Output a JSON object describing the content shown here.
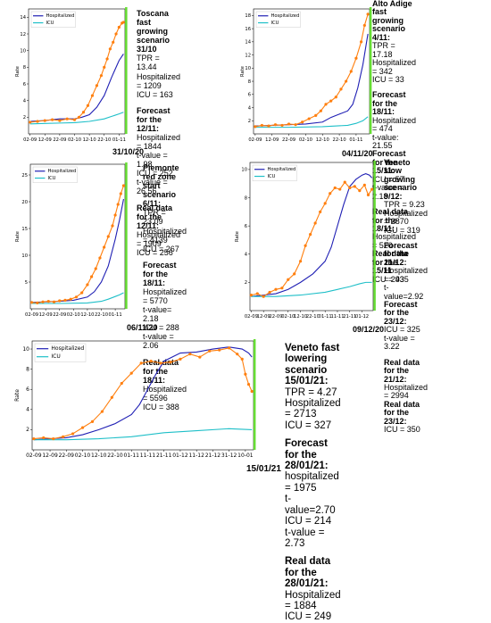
{
  "colors": {
    "hospitalized": "#1f1fb4",
    "icu": "#1ebfc8",
    "scatter": "#ff7f0e",
    "today_line": "#66dd33"
  },
  "panels": [
    {
      "date_label": "31/10/20",
      "info": [
        {
          "t": "Toscana fast",
          "b": true
        },
        {
          "t": "growing scenario 31/10",
          "b": true
        },
        {
          "t": "TPR = 13.44",
          "b": false
        },
        {
          "t": "Hospitalized = 1209",
          "b": false
        },
        {
          "t": "ICU = 163",
          "b": false
        },
        {
          "gap": true
        },
        {
          "t": "Forecast for the 12/11:",
          "b": true
        },
        {
          "t": "Hospitalized = 1844",
          "b": false
        },
        {
          "t": "t-value = 1.98",
          "b": false
        },
        {
          "t": "ICU = 252",
          "b": false
        },
        {
          "t": "t-value = 26.56",
          "b": false
        },
        {
          "gap": true
        },
        {
          "t": "Real data for the 12/11:",
          "b": true
        },
        {
          "t": "Hospitalized = 1909",
          "b": false
        },
        {
          "t": "ICU = 256",
          "b": false
        }
      ]
    },
    {
      "date_label": "04/11/20",
      "info": [
        {
          "t": "Alto Adige fast",
          "b": true
        },
        {
          "t": "growing scenario 4/11:",
          "b": true
        },
        {
          "t": "TPR = 17.18",
          "b": false
        },
        {
          "t": "Hospitalized = 342",
          "b": false
        },
        {
          "t": "ICU = 33",
          "b": false
        },
        {
          "gap": true
        },
        {
          "t": "Forecast for the 18/11:",
          "b": true
        },
        {
          "t": "Hospitalized = 474",
          "b": false
        },
        {
          "t": "t-value: 21.55",
          "b": false
        },
        {
          "t": "Forecast for the 15/11:",
          "b": true
        },
        {
          "t": "ICU = 57",
          "b": false
        },
        {
          "t": "t-value = 2.18",
          "b": false
        },
        {
          "gap": true
        },
        {
          "t": "Real data for the 18/11:",
          "b": true
        },
        {
          "t": "Hospitalized = 520",
          "b": false
        },
        {
          "t": "Real data for the 15/11",
          "b": true
        },
        {
          "t": "ICU = 43",
          "b": false
        }
      ]
    },
    {
      "date_label": "06/11\\20",
      "info": [
        {
          "t": "Piemonte red zone",
          "b": true
        },
        {
          "t": "start scenario 6/11:",
          "b": true
        },
        {
          "t": "TPR = 23.09",
          "b": false
        },
        {
          "t": "Hospitalized = 4139",
          "b": false
        },
        {
          "t": "ICU = 267",
          "b": false
        },
        {
          "gap": true
        },
        {
          "t": "Forecast for the 18/11:",
          "b": true
        },
        {
          "t": "Hospitalized = 5770",
          "b": false
        },
        {
          "t": "t-value= 2.18",
          "b": false
        },
        {
          "t": "ICU = 288",
          "b": false
        },
        {
          "t": "t-value = 2.06",
          "b": false
        },
        {
          "gap": true
        },
        {
          "t": "Real data for the 18/11:",
          "b": true
        },
        {
          "t": "Hospitalized = 5596",
          "b": false
        },
        {
          "t": "ICU = 388",
          "b": false
        }
      ]
    },
    {
      "date_label": "09/12/20",
      "info": [
        {
          "t": "Veneto slow",
          "b": true
        },
        {
          "t": "growing scenario 9/12:",
          "b": true
        },
        {
          "t": "TPR = 9.23",
          "b": false
        },
        {
          "t": "Hospitalized = 2870",
          "b": false
        },
        {
          "t": "ICU = 319",
          "b": false
        },
        {
          "gap": true
        },
        {
          "t": "Forecast for the 21/12:",
          "b": true
        },
        {
          "t": "Hospitalized = 2935",
          "b": false
        },
        {
          "t": "t-value=2.92",
          "b": false
        },
        {
          "t": "Forecast for the 23/12:",
          "b": true
        },
        {
          "t": "ICU = 325",
          "b": false
        },
        {
          "t": "t-value = 3.22",
          "b": false
        },
        {
          "gap": true
        },
        {
          "t": "Real data for the 21/12:",
          "b": true
        },
        {
          "t": "Hospitalized = 2994",
          "b": false
        },
        {
          "t": "Real data for the 23/12:",
          "b": true
        },
        {
          "t": "ICU = 350",
          "b": false
        }
      ]
    },
    {
      "date_label": "15/01/21",
      "info": [
        {
          "t": "Veneto fast",
          "b": true
        },
        {
          "t": "lowering scenario 15/01/21:",
          "b": true
        },
        {
          "t": "TPR = 4.27",
          "b": false
        },
        {
          "t": "Hospitalized = 2713",
          "b": false
        },
        {
          "t": "ICU = 327",
          "b": false
        },
        {
          "gap": true
        },
        {
          "t": "Forecast for the 28/01/21:",
          "b": true
        },
        {
          "t": "hospitalized = 1975",
          "b": false
        },
        {
          "t": "t-value=2.70",
          "b": false
        },
        {
          "t": "ICU = 214",
          "b": false
        },
        {
          "t": "t-value = 2.73",
          "b": false
        },
        {
          "gap": true
        },
        {
          "t": "Real data for the 28/01/21:",
          "b": true
        },
        {
          "t": "Hospitalized = 1884",
          "b": false
        },
        {
          "t": "ICU = 249",
          "b": false
        }
      ]
    }
  ],
  "chart_data": [
    {
      "type": "line",
      "ylabel": "Rate",
      "xticks": [
        "02-09",
        "12-09",
        "22-09",
        "02-10",
        "12-10",
        "22-10",
        "01-11"
      ],
      "ylim": [
        0,
        15
      ],
      "yticks": [
        2,
        4,
        6,
        8,
        10,
        12,
        14
      ],
      "legend": "top-left",
      "series": [
        {
          "name": "Hospitalized",
          "kind": "line",
          "x": [
            0,
            10,
            20,
            30,
            35,
            40,
            45,
            50,
            55,
            60,
            63
          ],
          "y": [
            1.5,
            1.6,
            1.8,
            1.8,
            2.0,
            2.3,
            3.2,
            4.6,
            6.8,
            8.8,
            9.6
          ]
        },
        {
          "name": "ICU",
          "kind": "line",
          "x": [
            0,
            10,
            20,
            30,
            40,
            50,
            55,
            60,
            63
          ],
          "y": [
            1.2,
            1.25,
            1.3,
            1.35,
            1.5,
            1.8,
            2.1,
            2.4,
            2.6
          ]
        },
        {
          "kind": "scatter",
          "x": [
            0,
            5,
            10,
            15,
            20,
            25,
            30,
            33,
            36,
            39,
            42,
            45,
            48,
            50,
            52,
            54,
            56,
            58,
            60,
            62,
            63
          ],
          "y": [
            1.4,
            1.5,
            1.6,
            1.7,
            1.6,
            1.8,
            1.7,
            2.0,
            2.6,
            3.4,
            4.6,
            5.8,
            7.0,
            8.0,
            9.0,
            10.2,
            11.0,
            12.0,
            12.8,
            13.3,
            13.4
          ]
        }
      ]
    },
    {
      "type": "line",
      "ylabel": "Rate",
      "xticks": [
        "02-09",
        "12-09",
        "22-09",
        "02-10",
        "12-10",
        "22-10",
        "01-11"
      ],
      "ylim": [
        0,
        19
      ],
      "yticks": [
        2,
        4,
        6,
        8,
        10,
        12,
        14,
        16,
        18
      ],
      "legend": "top-left",
      "series": [
        {
          "name": "Hospitalized",
          "kind": "line",
          "x": [
            0,
            10,
            20,
            30,
            40,
            45,
            50,
            55,
            58,
            61,
            64,
            67
          ],
          "y": [
            1.2,
            1.3,
            1.4,
            1.5,
            1.8,
            2.5,
            3.0,
            3.5,
            4.5,
            7.0,
            10.5,
            15.2
          ]
        },
        {
          "name": "ICU",
          "kind": "line",
          "x": [
            0,
            20,
            40,
            55,
            60,
            64,
            67
          ],
          "y": [
            1.0,
            1.0,
            1.1,
            1.3,
            1.6,
            2.0,
            2.6
          ]
        },
        {
          "kind": "scatter",
          "x": [
            0,
            4,
            8,
            12,
            16,
            20,
            24,
            28,
            32,
            36,
            39,
            42,
            45,
            48,
            51,
            54,
            57,
            60,
            63,
            65,
            67
          ],
          "y": [
            1.1,
            1.3,
            1.2,
            1.4,
            1.3,
            1.5,
            1.4,
            1.8,
            2.3,
            2.8,
            3.5,
            4.5,
            5.0,
            5.6,
            6.8,
            8.0,
            9.5,
            11.5,
            14.0,
            16.5,
            18.2
          ]
        }
      ]
    },
    {
      "type": "line",
      "ylabel": "Rate",
      "xticks": [
        "02-09",
        "12-09",
        "22-09",
        "02-10",
        "12-10",
        "22-10",
        "01-11"
      ],
      "ylim": [
        0,
        27
      ],
      "yticks": [
        5,
        10,
        15,
        20,
        25
      ],
      "legend": "top-left",
      "series": [
        {
          "name": "Hospitalized",
          "kind": "line",
          "x": [
            0,
            10,
            20,
            30,
            40,
            45,
            50,
            55,
            60,
            63,
            66
          ],
          "y": [
            1.2,
            1.3,
            1.4,
            1.6,
            2.2,
            3.2,
            5.0,
            8.0,
            13.0,
            16.5,
            20.5
          ]
        },
        {
          "name": "ICU",
          "kind": "line",
          "x": [
            0,
            20,
            40,
            50,
            55,
            60,
            63,
            66
          ],
          "y": [
            1.0,
            1.0,
            1.1,
            1.4,
            1.8,
            2.3,
            2.6,
            3.0
          ]
        },
        {
          "kind": "scatter",
          "x": [
            0,
            4,
            8,
            12,
            16,
            20,
            24,
            28,
            32,
            36,
            40,
            43,
            46,
            49,
            52,
            55,
            58,
            60,
            62,
            64,
            66
          ],
          "y": [
            1.2,
            1.1,
            1.3,
            1.4,
            1.3,
            1.5,
            1.6,
            1.8,
            2.2,
            3.0,
            4.5,
            6.0,
            7.5,
            9.5,
            11.5,
            13.5,
            15.5,
            17.5,
            19.5,
            21.5,
            23.0
          ]
        }
      ]
    },
    {
      "type": "line",
      "ylabel": "Rate",
      "xticks": [
        "02-09",
        "12-09",
        "22-09",
        "02-10",
        "12-10",
        "22-10",
        "01-11",
        "11-11",
        "21-11",
        "01-12"
      ],
      "ylim": [
        0,
        10.5
      ],
      "yticks": [
        2,
        4,
        6,
        8,
        10
      ],
      "legend": "top-left",
      "series": [
        {
          "name": "Hospitalized",
          "kind": "line",
          "x": [
            0,
            10,
            20,
            30,
            40,
            50,
            60,
            65,
            70,
            75,
            80,
            85,
            90,
            93,
            96,
            98
          ],
          "y": [
            1.0,
            1.1,
            1.2,
            1.5,
            2.0,
            2.6,
            3.5,
            4.5,
            6.0,
            7.5,
            8.8,
            9.3,
            9.6,
            9.7,
            9.6,
            9.4
          ]
        },
        {
          "name": "ICU",
          "kind": "line",
          "x": [
            0,
            20,
            40,
            60,
            70,
            80,
            88,
            93,
            98
          ],
          "y": [
            1.0,
            1.0,
            1.1,
            1.3,
            1.5,
            1.7,
            1.9,
            2.0,
            2.0
          ]
        },
        {
          "kind": "scatter",
          "x": [
            0,
            5,
            10,
            15,
            20,
            25,
            30,
            35,
            40,
            44,
            48,
            52,
            56,
            60,
            64,
            68,
            72,
            76,
            80,
            84,
            88,
            92,
            95,
            98
          ],
          "y": [
            1.1,
            1.2,
            1.0,
            1.3,
            1.5,
            1.6,
            2.2,
            2.6,
            3.5,
            4.6,
            5.4,
            6.2,
            7.0,
            7.6,
            8.3,
            8.7,
            8.6,
            9.1,
            8.7,
            8.8,
            8.5,
            8.9,
            8.2,
            8.6
          ]
        }
      ]
    },
    {
      "type": "line",
      "ylabel": "Rate",
      "xticks": [
        "02-09",
        "12-09",
        "22-09",
        "02-10",
        "12-10",
        "22-10",
        "01-11",
        "11-11",
        "21-11",
        "01-12",
        "11-12",
        "21-12",
        "31-12",
        "10-01"
      ],
      "ylim": [
        0,
        10.8
      ],
      "yticks": [
        2,
        4,
        6,
        8,
        10
      ],
      "legend": "top-left",
      "series": [
        {
          "name": "Hospitalized",
          "kind": "line",
          "x": [
            0,
            10,
            20,
            30,
            40,
            50,
            60,
            65,
            70,
            75,
            80,
            90,
            100,
            110,
            120,
            128,
            132,
            134
          ],
          "y": [
            1.0,
            1.1,
            1.2,
            1.5,
            2.0,
            2.6,
            3.5,
            4.5,
            6.0,
            7.5,
            8.8,
            9.6,
            9.7,
            10.0,
            10.2,
            10.0,
            9.6,
            9.2
          ]
        },
        {
          "name": "ICU",
          "kind": "line",
          "x": [
            0,
            20,
            40,
            60,
            80,
            100,
            120,
            134
          ],
          "y": [
            1.0,
            1.0,
            1.1,
            1.3,
            1.7,
            1.9,
            2.1,
            2.0
          ]
        },
        {
          "kind": "scatter",
          "x": [
            0,
            6,
            12,
            18,
            24,
            30,
            36,
            42,
            48,
            54,
            60,
            66,
            72,
            78,
            84,
            90,
            96,
            102,
            108,
            114,
            120,
            125,
            128,
            130,
            132,
            134
          ],
          "y": [
            1.1,
            1.2,
            1.1,
            1.3,
            1.6,
            2.2,
            2.8,
            3.8,
            5.2,
            6.6,
            7.6,
            8.6,
            8.8,
            8.6,
            8.7,
            9.0,
            9.5,
            9.2,
            9.8,
            9.9,
            10.1,
            9.5,
            9.0,
            7.5,
            6.5,
            5.8
          ]
        }
      ]
    }
  ]
}
